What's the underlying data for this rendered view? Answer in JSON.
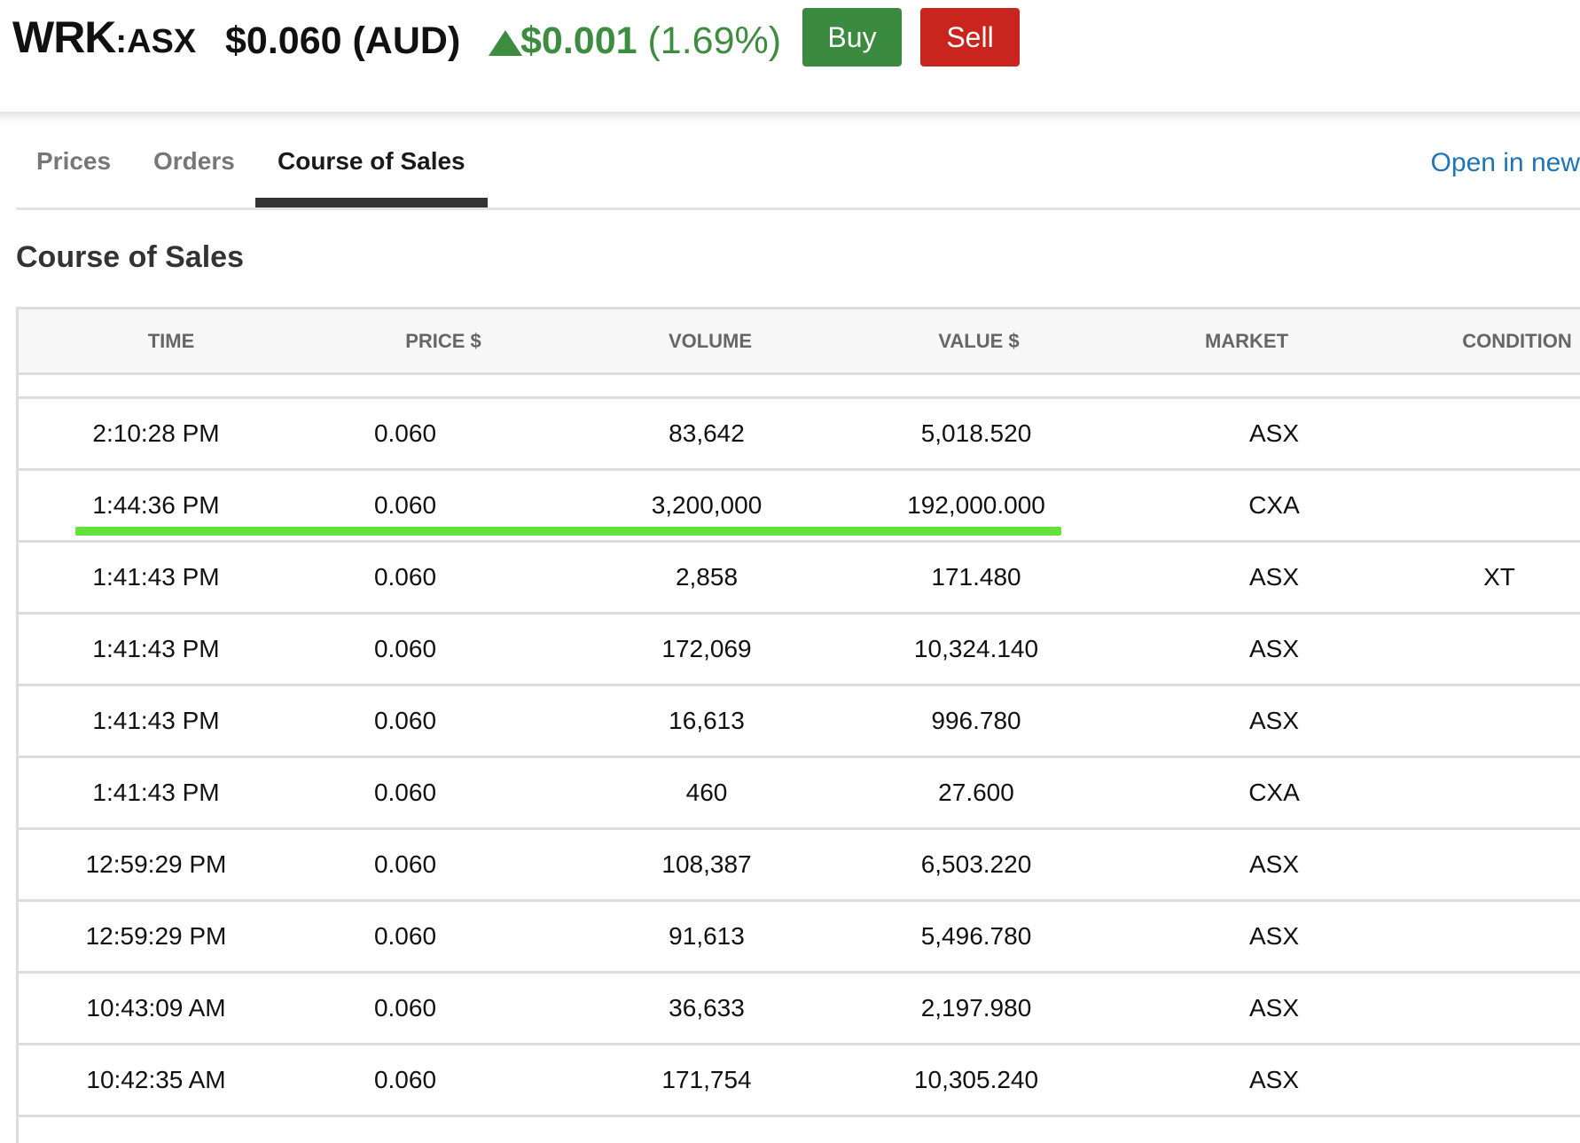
{
  "header": {
    "ticker": "WRK",
    "exchange": ":ASX",
    "price": "$0.060 (AUD)",
    "change_amount": "$0.001",
    "change_percent": "(1.69%)",
    "change_direction_icon": "up-triangle-icon",
    "buy_label": "Buy",
    "sell_label": "Sell"
  },
  "tabs": [
    {
      "label": "Prices",
      "active": false
    },
    {
      "label": "Orders",
      "active": false
    },
    {
      "label": "Course of Sales",
      "active": true
    }
  ],
  "open_in_new_label": "Open in new",
  "section_title": "Course of Sales",
  "table": {
    "columns": [
      "TIME",
      "PRICE $",
      "VOLUME",
      "VALUE $",
      "MARKET",
      "CONDITION"
    ],
    "rows": [
      [
        "2:10:28 PM",
        "0.060",
        "83,642",
        "5,018.520",
        "ASX",
        ""
      ],
      [
        "1:44:36 PM",
        "0.060",
        "3,200,000",
        "192,000.000",
        "CXA",
        ""
      ],
      [
        "1:41:43 PM",
        "0.060",
        "2,858",
        "171.480",
        "ASX",
        "XT"
      ],
      [
        "1:41:43 PM",
        "0.060",
        "172,069",
        "10,324.140",
        "ASX",
        ""
      ],
      [
        "1:41:43 PM",
        "0.060",
        "16,613",
        "996.780",
        "ASX",
        ""
      ],
      [
        "1:41:43 PM",
        "0.060",
        "460",
        "27.600",
        "CXA",
        ""
      ],
      [
        "12:59:29 PM",
        "0.060",
        "108,387",
        "6,503.220",
        "ASX",
        ""
      ],
      [
        "12:59:29 PM",
        "0.060",
        "91,613",
        "5,496.780",
        "ASX",
        ""
      ],
      [
        "10:43:09 AM",
        "0.060",
        "36,633",
        "2,197.980",
        "ASX",
        ""
      ],
      [
        "10:42:35 AM",
        "0.060",
        "171,754",
        "10,305.240",
        "ASX",
        ""
      ]
    ],
    "highlighted_row": 1
  },
  "colors": {
    "up": "#3d8c40",
    "buy": "#3a8a40",
    "sell": "#c9241d",
    "link": "#1f73b7",
    "highlight": "#62e23a"
  }
}
